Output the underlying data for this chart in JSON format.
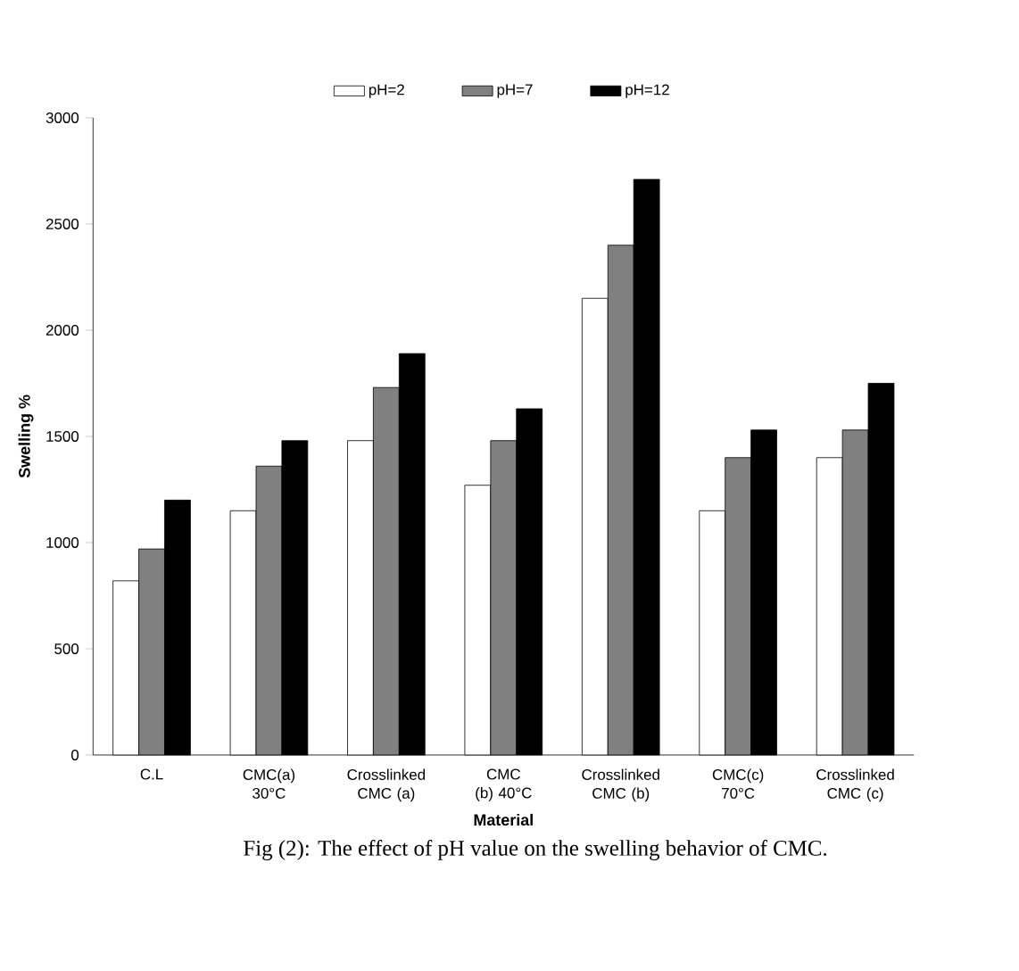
{
  "chart_data": {
    "type": "bar",
    "categories": [
      "C.L",
      "CMC(a) 30°C",
      "Crosslinked CMC (a)",
      "CMC (b) 40°C",
      "Crosslinked CMC (b)",
      "CMC(c) 70°C",
      "Crosslinked CMC (c)"
    ],
    "series": [
      {
        "name": "pH=2",
        "color": "#ffffff",
        "values": [
          820,
          1150,
          1480,
          1270,
          2150,
          1150,
          1400
        ]
      },
      {
        "name": "pH=7",
        "color": "#808080",
        "values": [
          970,
          1360,
          1730,
          1480,
          2400,
          1400,
          1530
        ]
      },
      {
        "name": "pH=12",
        "color": "#000000",
        "values": [
          1200,
          1480,
          1890,
          1630,
          2710,
          1530,
          1750
        ]
      }
    ],
    "xlabel": "Material",
    "ylabel": "Swelling %",
    "ylim": [
      0,
      3000
    ],
    "yticks": [
      0,
      500,
      1000,
      1500,
      2000,
      2500,
      3000
    ],
    "legend": "top",
    "grid": false,
    "annotations": [
      "Fig (2): The effect of pH value on the swelling behavior of CMC."
    ]
  }
}
